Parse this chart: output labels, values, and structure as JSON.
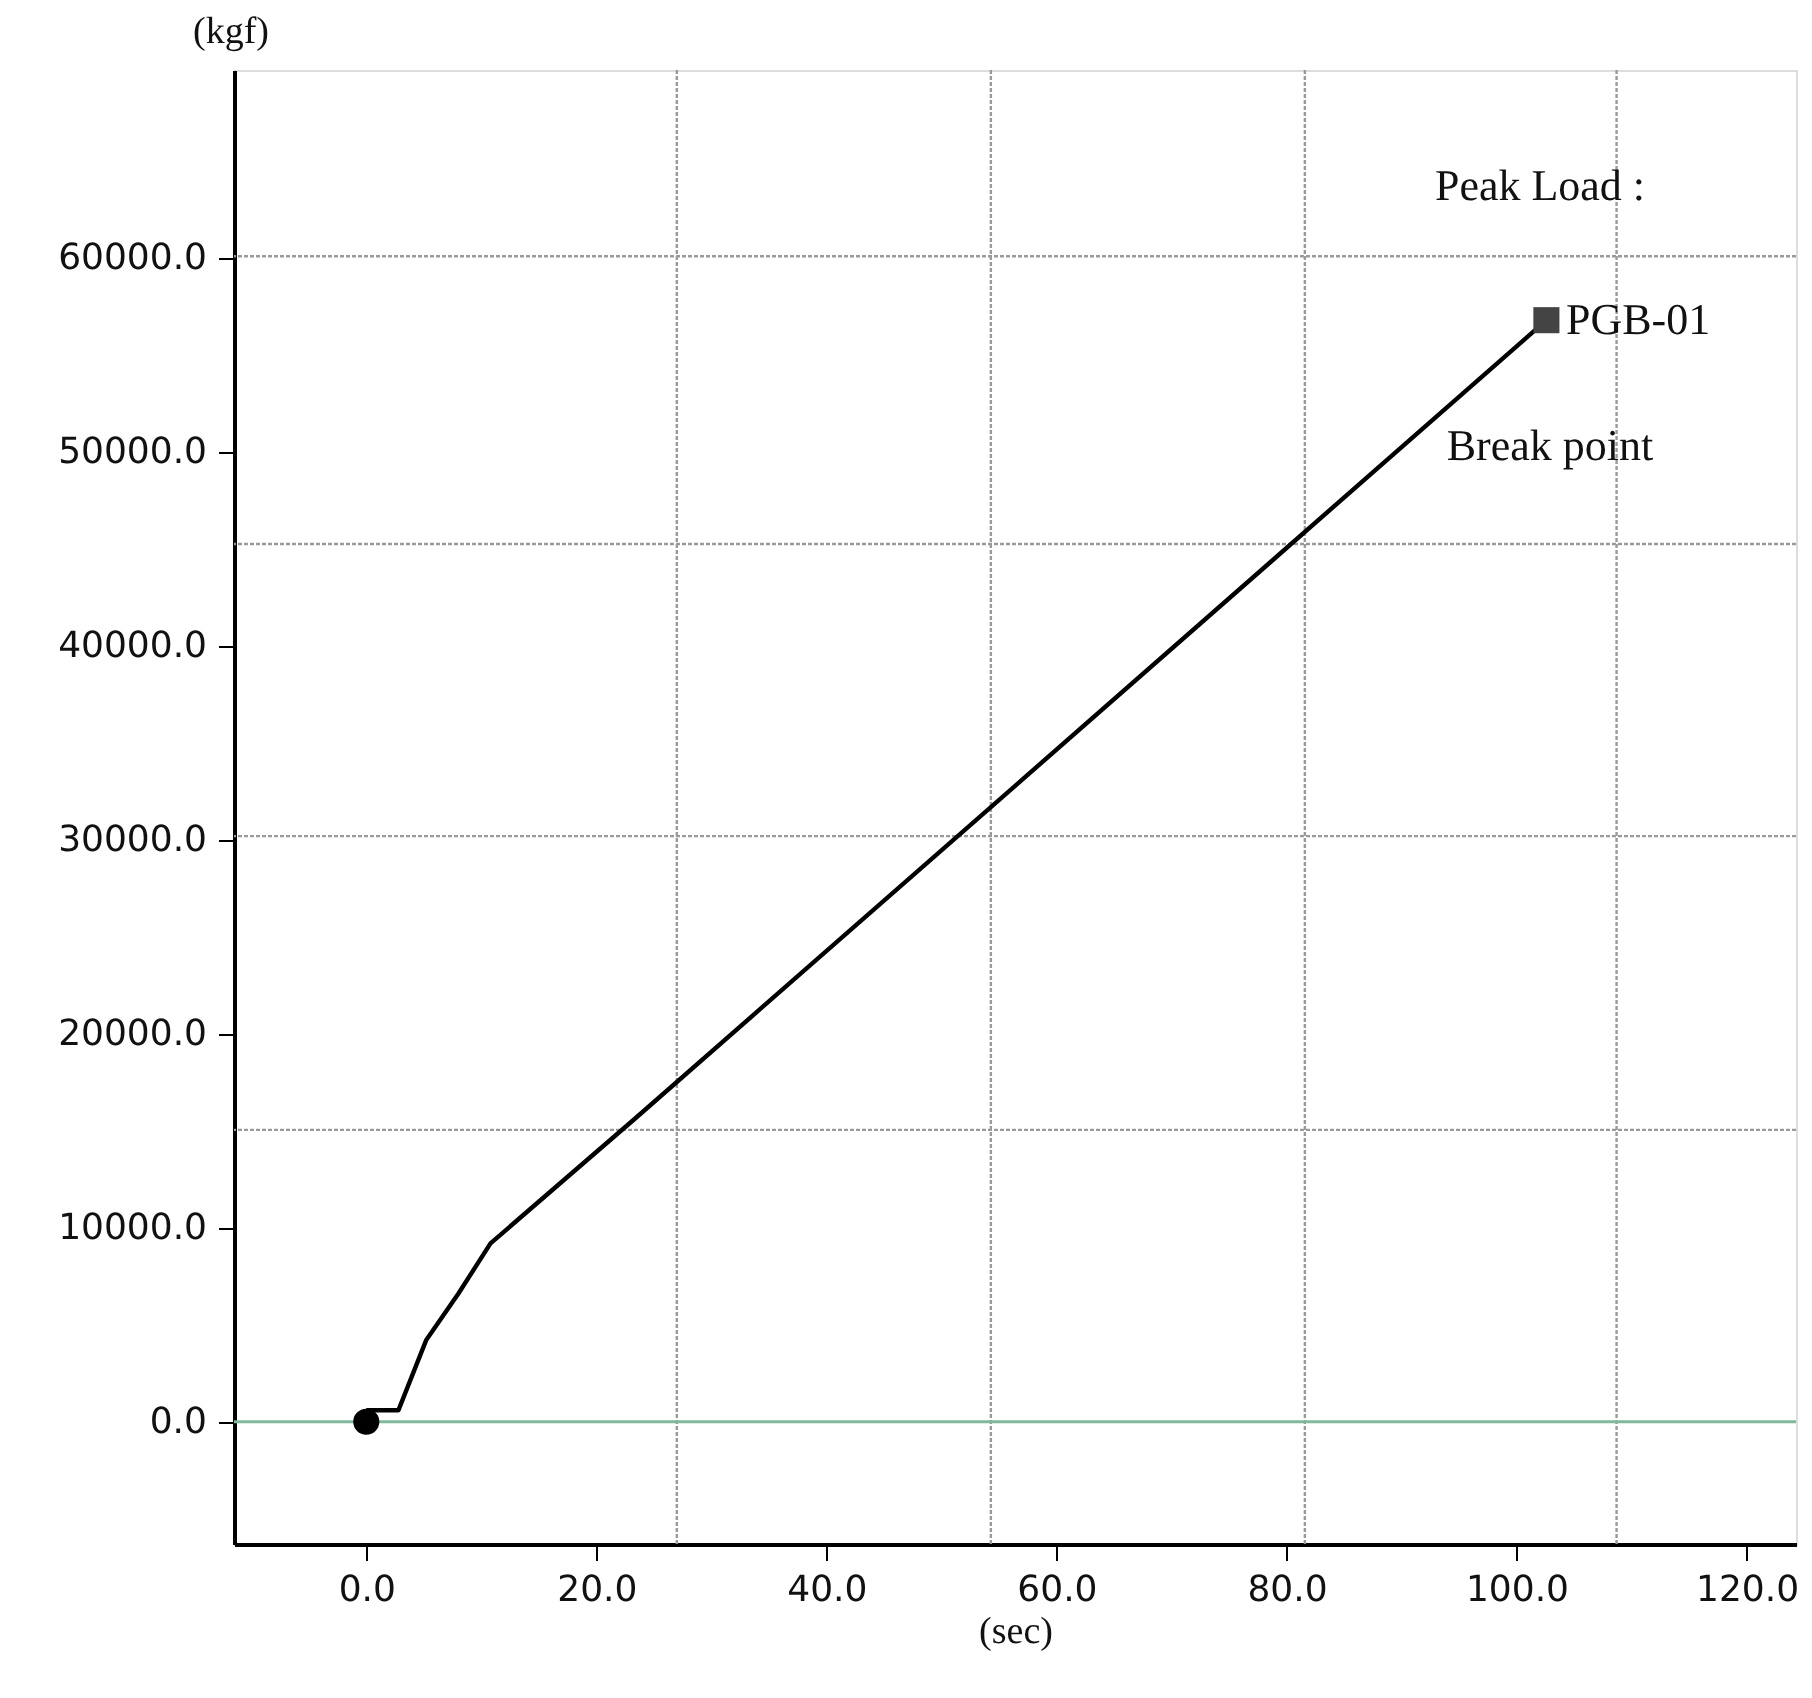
{
  "chart_data": {
    "type": "line",
    "xlabel": "(sec)",
    "ylabel": "(kgf)",
    "xlim": [
      -11.5,
      124.3
    ],
    "ylim": [
      -6300,
      69700
    ],
    "xticks": [
      {
        "value": 0,
        "label": "0.0"
      },
      {
        "value": 20,
        "label": "20.0"
      },
      {
        "value": 40,
        "label": "40.0"
      },
      {
        "value": 60,
        "label": "60.0"
      },
      {
        "value": 80,
        "label": "80.0"
      },
      {
        "value": 100,
        "label": "100.0"
      },
      {
        "value": 120,
        "label": "120.0"
      },
      {
        "value": 27.0,
        "label": null
      },
      {
        "value": 54.3,
        "label": null
      },
      {
        "value": 81.6,
        "label": null
      },
      {
        "value": 108.7,
        "label": null
      }
    ],
    "yticks": [
      {
        "value": 0,
        "label": "0.0"
      },
      {
        "value": 10000,
        "label": "10000.0"
      },
      {
        "value": 20000,
        "label": "20000.0"
      },
      {
        "value": 30000,
        "label": "30000.0"
      },
      {
        "value": 40000,
        "label": "40000.0"
      },
      {
        "value": 50000,
        "label": "50000.0"
      },
      {
        "value": 60000,
        "label": "60000.0"
      },
      {
        "value": 15050,
        "label": null
      },
      {
        "value": 30200,
        "label": null
      },
      {
        "value": 45260,
        "label": null
      },
      {
        "value": 60100,
        "label": null
      }
    ],
    "grid": true,
    "ref_lines": [
      {
        "axis": "y",
        "value": 0,
        "color": "#7fb89a"
      }
    ],
    "series": [
      {
        "color": "#000000",
        "x": [
          0,
          2.8,
          5.2,
          8,
          10.8,
          23.3,
          57.2,
          102.6
        ],
        "values": [
          600,
          600,
          4200,
          6600,
          9200,
          15600,
          33200,
          56800
        ]
      },
      {
        "type": "scatter",
        "marker": "circle",
        "color": "#000000",
        "x": [
          0
        ],
        "values": [
          0
        ]
      },
      {
        "type": "scatter",
        "marker": "square",
        "color": "#444444",
        "x": [
          102.6
        ],
        "values": [
          56800
        ]
      }
    ],
    "annotations": [
      "Peak Load :",
      {
        "text": "PGB-01",
        "x": 104.3,
        "y": 56800
      },
      "Break point"
    ]
  }
}
